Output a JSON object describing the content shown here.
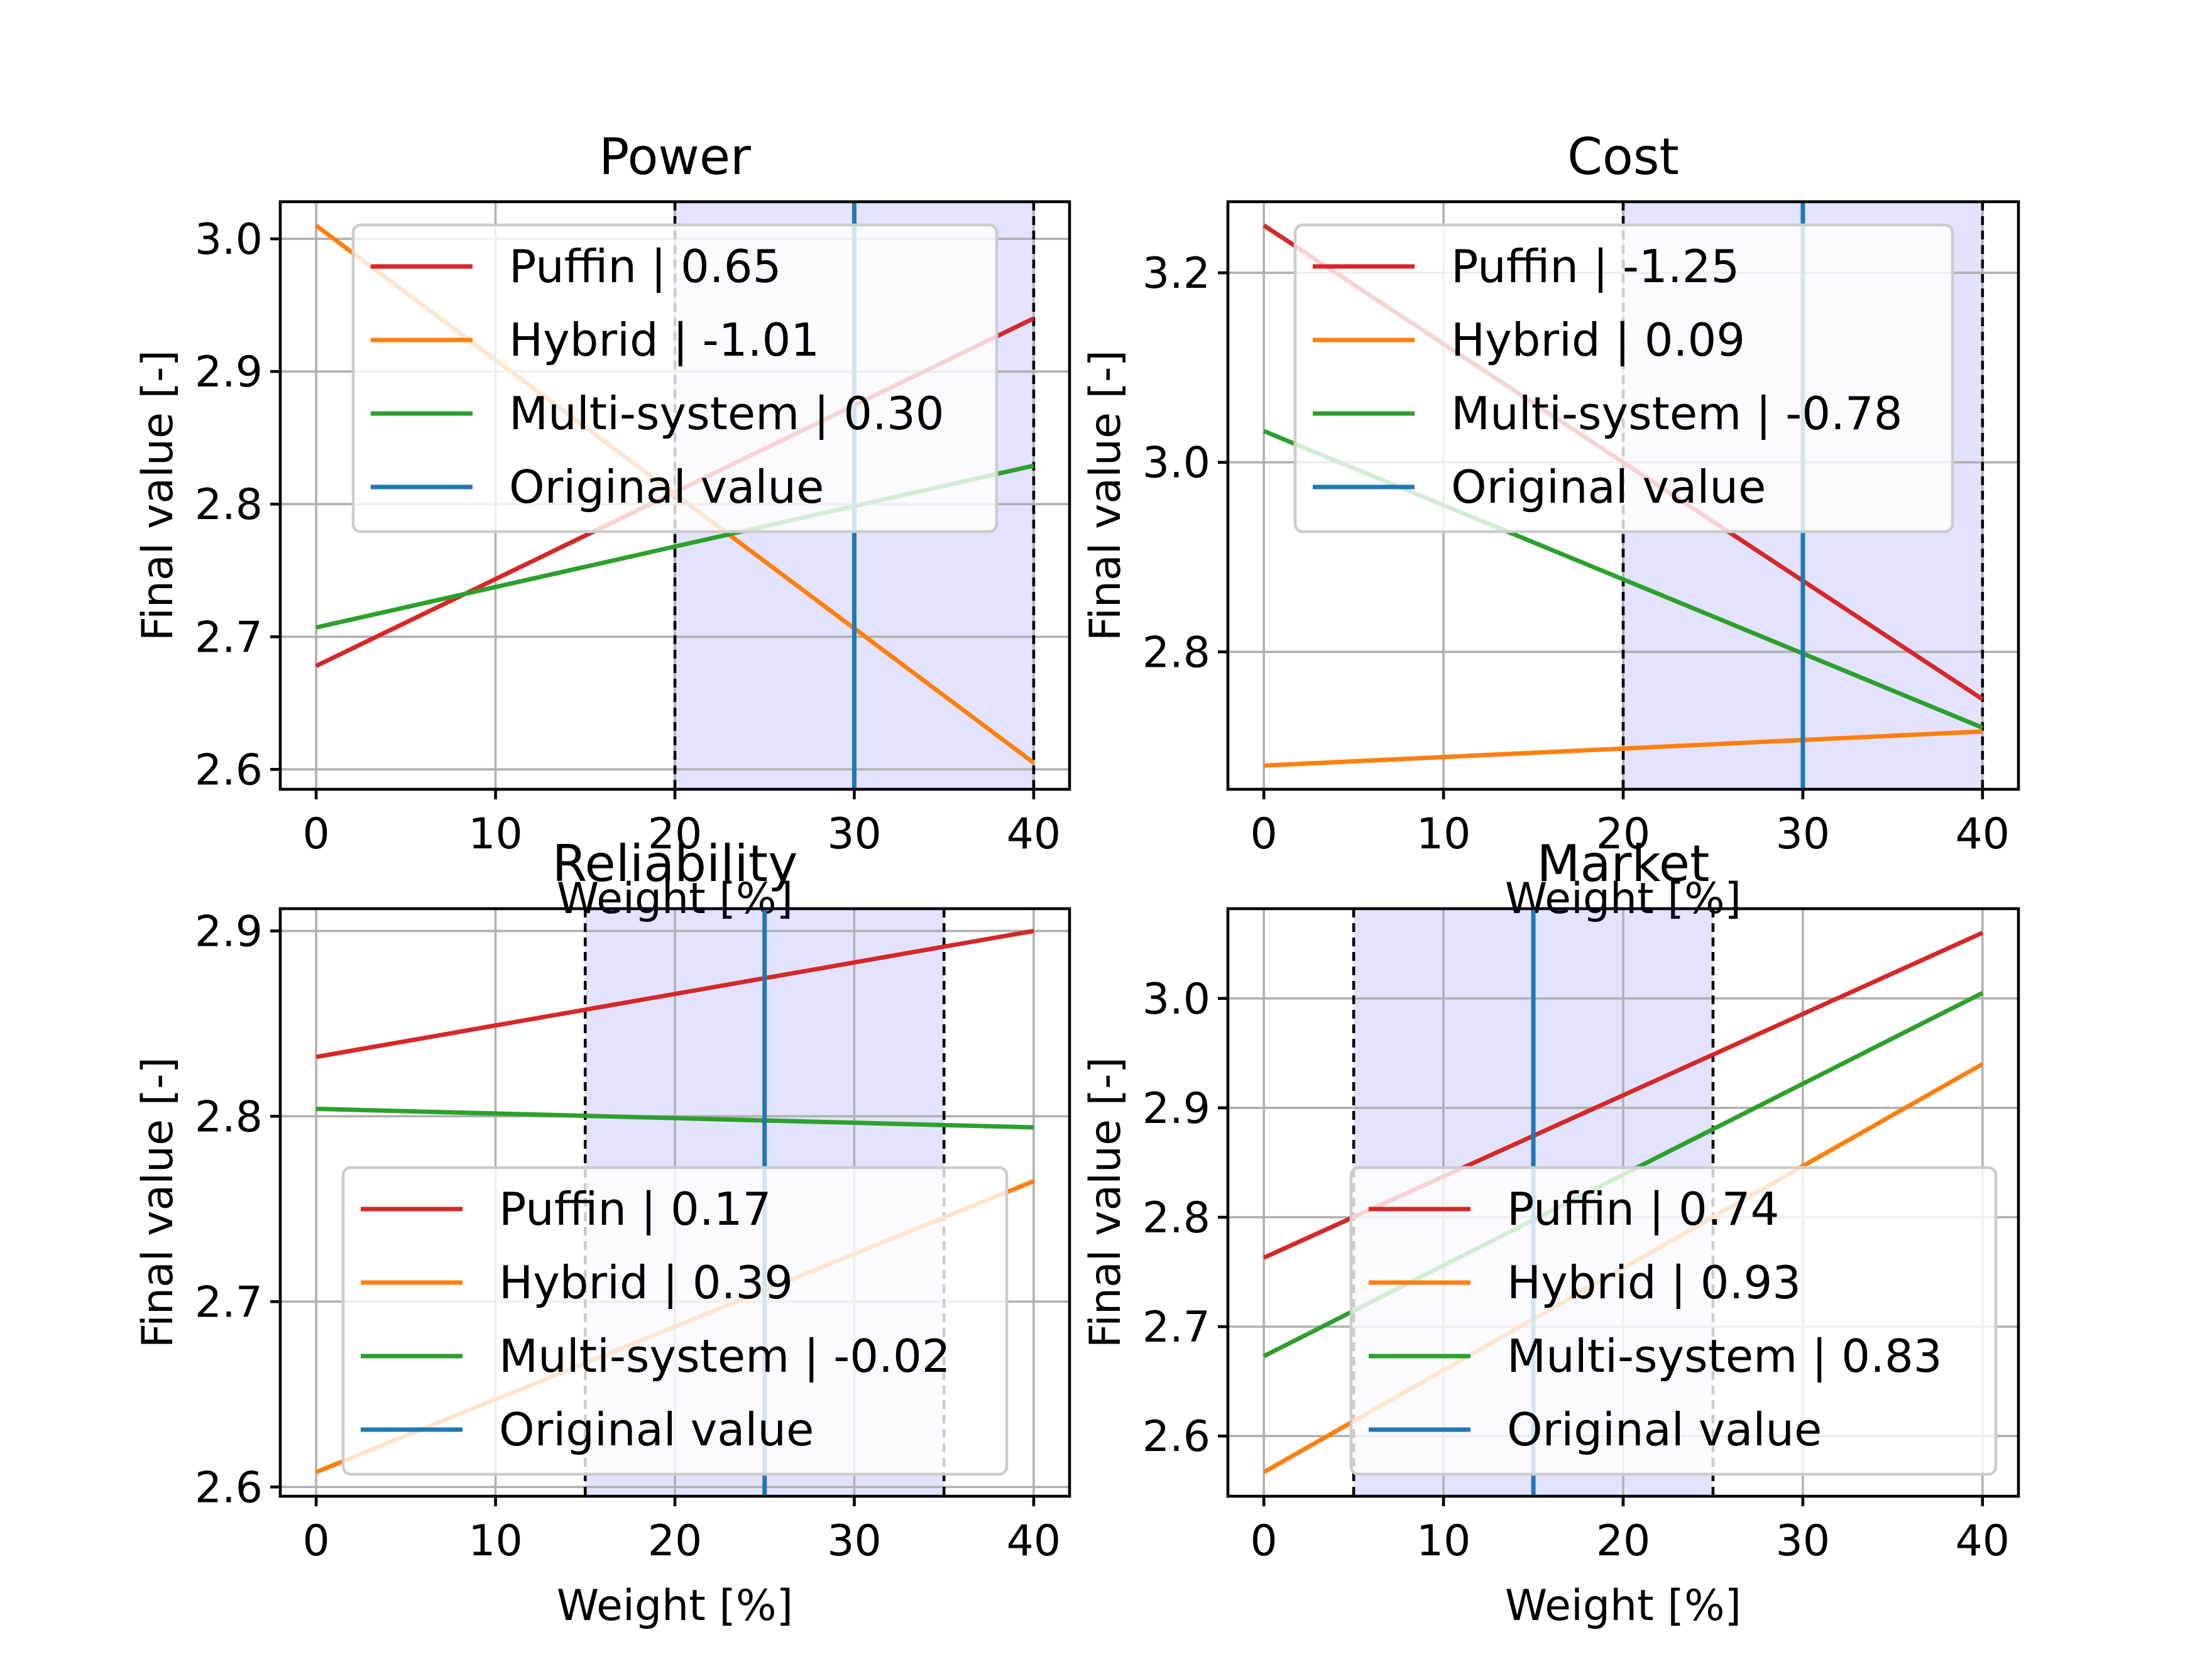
{
  "chart_data": [
    {
      "type": "line",
      "title": "Power",
      "xlabel": "Weight [%]",
      "ylabel": "Final value [-]",
      "xlim": [
        -2,
        42
      ],
      "ylim": [
        2.585,
        3.028
      ],
      "xticks": [
        0,
        10,
        20,
        30,
        40
      ],
      "yticks": [
        2.6,
        2.7,
        2.8,
        2.9,
        3.0
      ],
      "ytick_labels": [
        "2.6",
        "2.7",
        "2.8",
        "2.9",
        "3.0"
      ],
      "grid": true,
      "legend": "upper-center",
      "span": [
        20,
        40
      ],
      "original_weight": 30,
      "series": [
        {
          "name": "Puffin | 0.65",
          "color": "#d62728",
          "x": [
            0,
            40
          ],
          "y": [
            2.678,
            2.94
          ]
        },
        {
          "name": "Hybrid | -1.01",
          "color": "#ff7f0e",
          "x": [
            0,
            40
          ],
          "y": [
            3.01,
            2.605
          ]
        },
        {
          "name": "Multi-system | 0.30",
          "color": "#2ca02c",
          "x": [
            0,
            40
          ],
          "y": [
            2.707,
            2.829
          ]
        }
      ],
      "reference_line": {
        "name": "Original value",
        "color": "#1f77b4"
      }
    },
    {
      "type": "line",
      "title": "Cost",
      "xlabel": "Weight [%]",
      "ylabel": "Final value [-]",
      "xlim": [
        -2,
        42
      ],
      "ylim": [
        2.655,
        3.275
      ],
      "xticks": [
        0,
        10,
        20,
        30,
        40
      ],
      "yticks": [
        2.8,
        3.0,
        3.2
      ],
      "ytick_labels": [
        "2.8",
        "3.0",
        "3.2"
      ],
      "grid": true,
      "legend": "upper-center",
      "span": [
        20,
        40
      ],
      "original_weight": 30,
      "series": [
        {
          "name": "Puffin | -1.25",
          "color": "#d62728",
          "x": [
            0,
            40
          ],
          "y": [
            3.25,
            2.75
          ]
        },
        {
          "name": "Hybrid | 0.09",
          "color": "#ff7f0e",
          "x": [
            0,
            40
          ],
          "y": [
            2.68,
            2.716
          ]
        },
        {
          "name": "Multi-system | -0.78",
          "color": "#2ca02c",
          "x": [
            0,
            40
          ],
          "y": [
            3.033,
            2.72
          ]
        }
      ],
      "reference_line": {
        "name": "Original value",
        "color": "#1f77b4"
      }
    },
    {
      "type": "line",
      "title": "Reliability",
      "xlabel": "Weight [%]",
      "ylabel": "Final value [-]",
      "xlim": [
        -2,
        42
      ],
      "ylim": [
        2.595,
        2.912
      ],
      "xticks": [
        0,
        10,
        20,
        30,
        40
      ],
      "yticks": [
        2.6,
        2.7,
        2.8,
        2.9
      ],
      "ytick_labels": [
        "2.6",
        "2.7",
        "2.8",
        "2.9"
      ],
      "grid": true,
      "legend": "lower-center",
      "span": [
        15,
        35
      ],
      "original_weight": 25,
      "series": [
        {
          "name": "Puffin | 0.17",
          "color": "#d62728",
          "x": [
            0,
            40
          ],
          "y": [
            2.832,
            2.9
          ]
        },
        {
          "name": "Hybrid | 0.39",
          "color": "#ff7f0e",
          "x": [
            0,
            40
          ],
          "y": [
            2.608,
            2.765
          ]
        },
        {
          "name": "Multi-system | -0.02",
          "color": "#2ca02c",
          "x": [
            0,
            40
          ],
          "y": [
            2.804,
            2.794
          ]
        }
      ],
      "reference_line": {
        "name": "Original value",
        "color": "#1f77b4"
      }
    },
    {
      "type": "line",
      "title": "Market",
      "xlabel": "Weight [%]",
      "ylabel": "Final value [-]",
      "xlim": [
        -2,
        42
      ],
      "ylim": [
        2.545,
        3.082
      ],
      "xticks": [
        0,
        10,
        20,
        30,
        40
      ],
      "yticks": [
        2.6,
        2.7,
        2.8,
        2.9,
        3.0
      ],
      "ytick_labels": [
        "2.6",
        "2.7",
        "2.8",
        "2.9",
        "3.0"
      ],
      "grid": true,
      "legend": "lower-right",
      "span": [
        5,
        25
      ],
      "original_weight": 15,
      "series": [
        {
          "name": "Puffin | 0.74",
          "color": "#d62728",
          "x": [
            0,
            40
          ],
          "y": [
            2.763,
            3.06
          ]
        },
        {
          "name": "Hybrid | 0.93",
          "color": "#ff7f0e",
          "x": [
            0,
            40
          ],
          "y": [
            2.567,
            2.94
          ]
        },
        {
          "name": "Multi-system | 0.83",
          "color": "#2ca02c",
          "x": [
            0,
            40
          ],
          "y": [
            2.673,
            3.005
          ]
        }
      ],
      "reference_line": {
        "name": "Original value",
        "color": "#1f77b4"
      }
    }
  ]
}
